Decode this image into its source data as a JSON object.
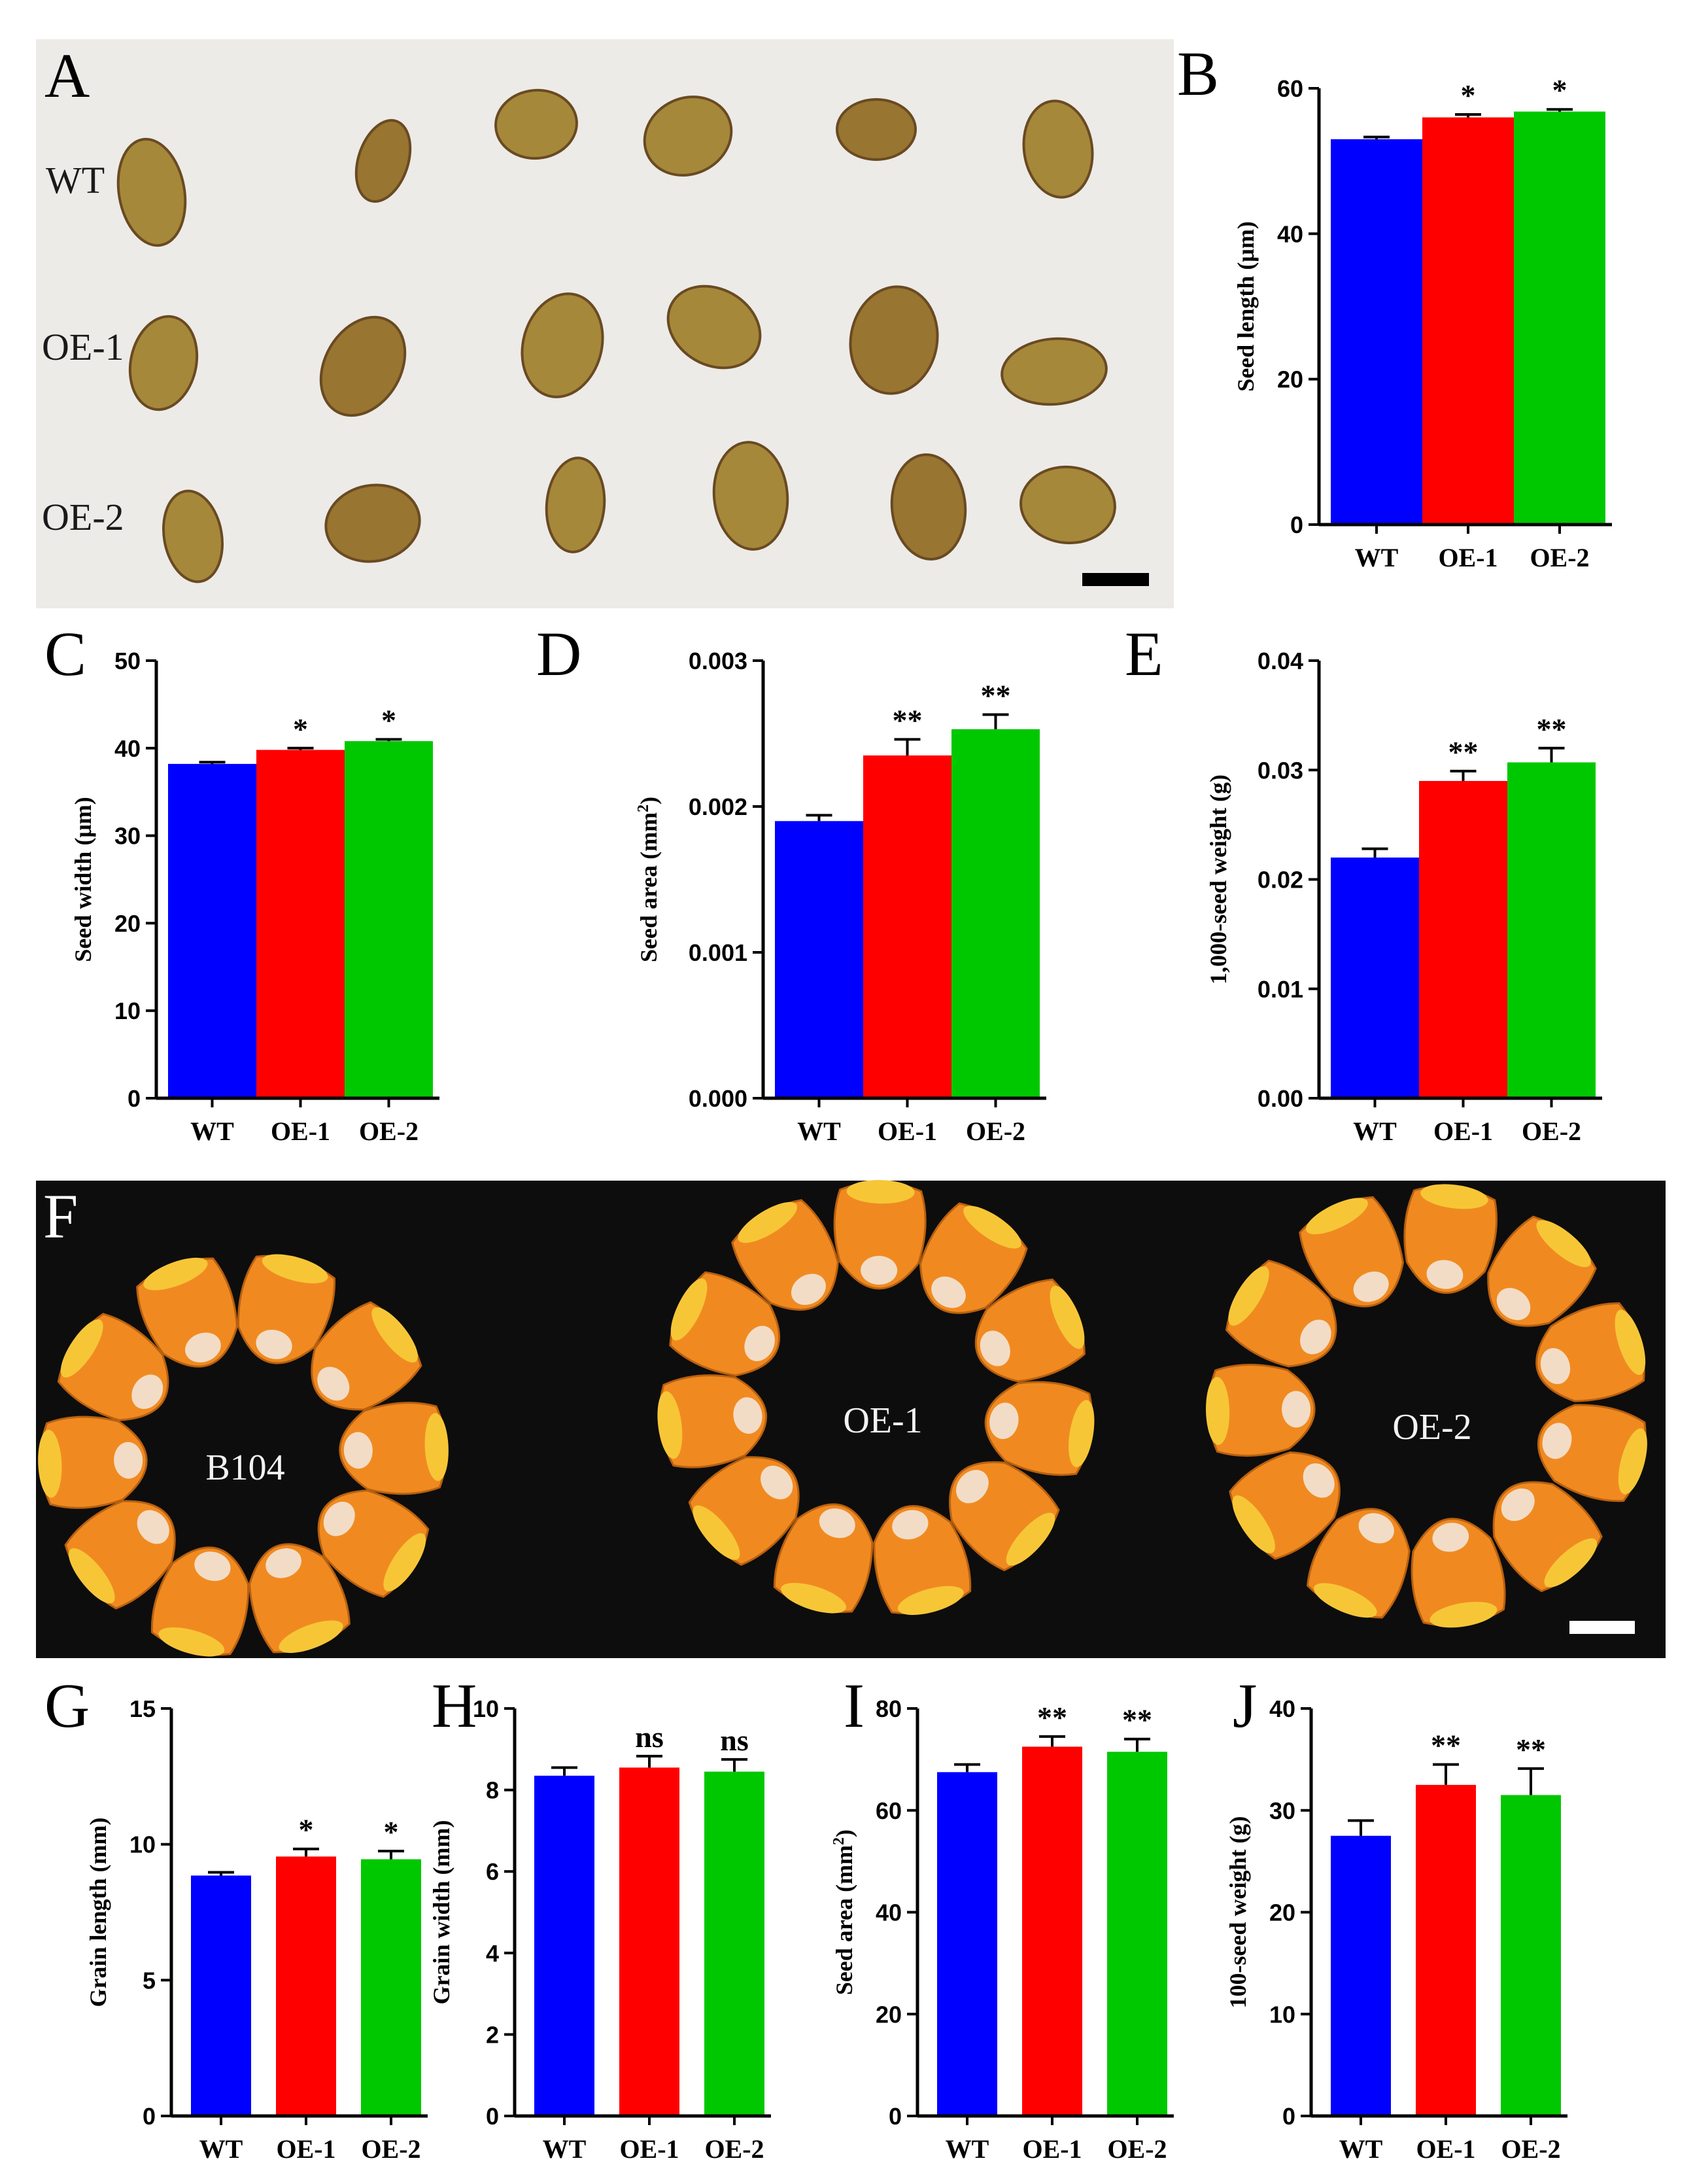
{
  "photo_panels": {
    "A": {
      "letter": "A",
      "row_labels": [
        "WT",
        "OE-1",
        "OE-2"
      ]
    },
    "F": {
      "letter": "F",
      "ring_labels": [
        "B104",
        "OE-1",
        "OE-2"
      ]
    }
  },
  "colors": {
    "WT": "#0000ff",
    "OE-1": "#ff0000",
    "OE-2": "#00c800",
    "arabidopsis_seed": "#a5883a",
    "maize_kernel": "#f08a20"
  },
  "chart_data": [
    {
      "panel": "B",
      "type": "bar",
      "categories": [
        "WT",
        "OE-1",
        "OE-2"
      ],
      "values": [
        53.0,
        56.0,
        56.8
      ],
      "errors": [
        0.3,
        0.4,
        0.3
      ],
      "significance": [
        "",
        "*",
        "*"
      ],
      "ylabel": "Seed length (μm)",
      "ylim": [
        0,
        60
      ],
      "yticks": [
        "0",
        "20",
        "40",
        "60"
      ]
    },
    {
      "panel": "C",
      "type": "bar",
      "categories": [
        "WT",
        "OE-1",
        "OE-2"
      ],
      "values": [
        38.2,
        39.8,
        40.8
      ],
      "errors": [
        0.2,
        0.2,
        0.2
      ],
      "significance": [
        "",
        "*",
        "*"
      ],
      "ylabel": "Seed width (μm)",
      "ylim": [
        0,
        50
      ],
      "yticks": [
        "0",
        "10",
        "20",
        "30",
        "40",
        "50"
      ]
    },
    {
      "panel": "D",
      "type": "bar",
      "categories": [
        "WT",
        "OE-1",
        "OE-2"
      ],
      "values": [
        0.0019,
        0.00235,
        0.00253
      ],
      "errors": [
        4e-05,
        0.00011,
        0.0001
      ],
      "significance": [
        "",
        "**",
        "**"
      ],
      "ylabel": "Seed area (mm",
      "ylabel_sup": "2",
      "ylabel_end": ")",
      "ylim": [
        0,
        0.003
      ],
      "yticks": [
        "0.000",
        "0.001",
        "0.002",
        "0.003"
      ]
    },
    {
      "panel": "E",
      "type": "bar",
      "categories": [
        "WT",
        "OE-1",
        "OE-2"
      ],
      "values": [
        0.022,
        0.029,
        0.0307
      ],
      "errors": [
        0.0008,
        0.0009,
        0.0013
      ],
      "significance": [
        "",
        "**",
        "**"
      ],
      "ylabel": "1,000-seed weight (g)",
      "ylim": [
        0,
        0.04
      ],
      "yticks": [
        "0.00",
        "0.01",
        "0.02",
        "0.03",
        "0.04"
      ]
    },
    {
      "panel": "G",
      "type": "bar",
      "categories": [
        "WT",
        "OE-1",
        "OE-2"
      ],
      "values": [
        8.85,
        9.55,
        9.45
      ],
      "errors": [
        0.12,
        0.28,
        0.3
      ],
      "significance": [
        "",
        "*",
        "*"
      ],
      "ylabel": "Grain length (mm)",
      "ylim": [
        0,
        15
      ],
      "yticks": [
        "0",
        "5",
        "10",
        "15"
      ]
    },
    {
      "panel": "H",
      "type": "bar",
      "categories": [
        "WT",
        "OE-1",
        "OE-2"
      ],
      "values": [
        8.35,
        8.55,
        8.45
      ],
      "errors": [
        0.2,
        0.28,
        0.3
      ],
      "significance": [
        "",
        "ns",
        "ns"
      ],
      "ylabel": "Grain width (mm)",
      "ylim": [
        0,
        10
      ],
      "yticks": [
        "0",
        "2",
        "4",
        "6",
        "8",
        "10"
      ]
    },
    {
      "panel": "I",
      "type": "bar",
      "categories": [
        "WT",
        "OE-1",
        "OE-2"
      ],
      "values": [
        67.5,
        72.5,
        71.5
      ],
      "errors": [
        1.5,
        2.0,
        2.5
      ],
      "significance": [
        "",
        "**",
        "**"
      ],
      "ylabel": "Seed area (mm",
      "ylabel_sup": "2",
      "ylabel_end": ")",
      "ylim": [
        0,
        80
      ],
      "yticks": [
        "0",
        "20",
        "40",
        "60",
        "80"
      ]
    },
    {
      "panel": "J",
      "type": "bar",
      "categories": [
        "WT",
        "OE-1",
        "OE-2"
      ],
      "values": [
        27.5,
        32.5,
        31.5
      ],
      "errors": [
        1.5,
        2.0,
        2.6
      ],
      "significance": [
        "",
        "**",
        "**"
      ],
      "ylabel": "100-seed weight (g)",
      "ylim": [
        0,
        40
      ],
      "yticks": [
        "0",
        "10",
        "20",
        "30",
        "40"
      ]
    }
  ]
}
